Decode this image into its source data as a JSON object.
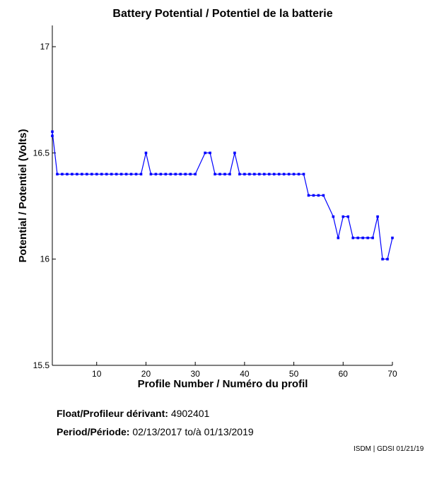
{
  "chart_data": {
    "type": "line",
    "title": "Battery Potential / Potentiel de la batterie",
    "xlabel": "Profile Number / Numéro du profil",
    "ylabel": "Potential / Potentiel (Volts)",
    "xlim": [
      1,
      70
    ],
    "ylim": [
      15.5,
      17.1
    ],
    "xticks": [
      10,
      20,
      30,
      40,
      50,
      60,
      70
    ],
    "yticks": [
      15.5,
      16,
      16.5,
      17
    ],
    "yticklabels": [
      "15.5",
      "16",
      "16.5",
      "17"
    ],
    "grid": false,
    "line_color": "#0000ff",
    "series": [
      {
        "x": [
          1,
          1,
          2,
          3,
          4,
          5,
          6,
          7,
          8,
          9,
          10,
          11,
          12,
          13,
          14,
          15,
          16,
          17,
          18,
          19,
          20,
          21,
          22,
          23,
          24,
          25,
          26,
          27,
          28,
          29,
          30,
          32,
          33,
          34,
          35,
          36,
          37,
          38,
          39,
          40,
          41,
          42,
          43,
          44,
          45,
          46,
          47,
          48,
          49,
          50,
          51,
          52,
          53,
          54,
          55,
          56,
          58,
          59,
          60,
          61,
          62,
          63,
          64,
          65,
          66,
          67,
          68,
          69,
          70
        ],
        "y": [
          16.58,
          16.6,
          16.4,
          16.4,
          16.4,
          16.4,
          16.4,
          16.4,
          16.4,
          16.4,
          16.4,
          16.4,
          16.4,
          16.4,
          16.4,
          16.4,
          16.4,
          16.4,
          16.4,
          16.4,
          16.5,
          16.4,
          16.4,
          16.4,
          16.4,
          16.4,
          16.4,
          16.4,
          16.4,
          16.4,
          16.4,
          16.5,
          16.5,
          16.4,
          16.4,
          16.4,
          16.4,
          16.5,
          16.4,
          16.4,
          16.4,
          16.4,
          16.4,
          16.4,
          16.4,
          16.4,
          16.4,
          16.4,
          16.4,
          16.4,
          16.4,
          16.4,
          16.3,
          16.3,
          16.3,
          16.3,
          16.2,
          16.1,
          16.2,
          16.2,
          16.1,
          16.1,
          16.1,
          16.1,
          16.1,
          16.2,
          16.0,
          16.0,
          16.1
        ]
      }
    ]
  },
  "info": {
    "float_label": "Float/Profileur dérivant:",
    "float_value": "4902401",
    "period_label": "Period/Période:",
    "period_start": "02/13/2017",
    "period_sep": "to/à",
    "period_end": "01/13/2019",
    "credit": "ISDM | GDSI 01/21/19"
  }
}
